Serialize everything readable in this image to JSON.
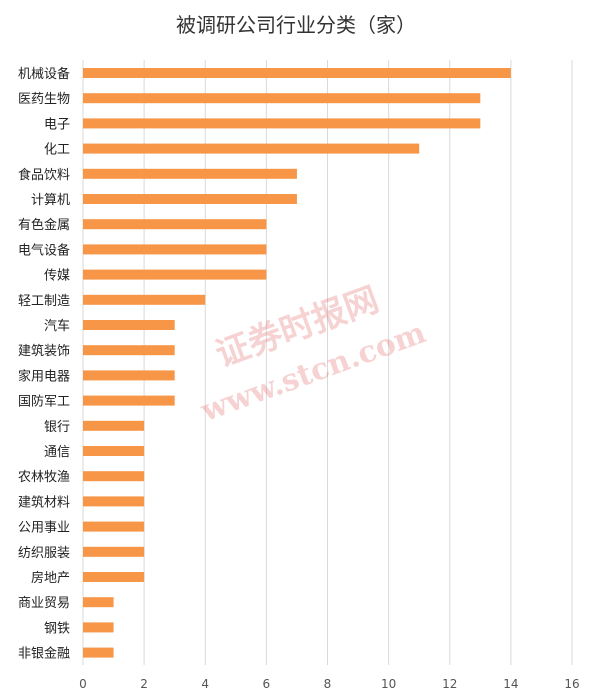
{
  "chart_data": {
    "type": "bar",
    "orientation": "horizontal",
    "title": "被调研公司行业分类（家）",
    "categories": [
      "机械设备",
      "医药生物",
      "电子",
      "化工",
      "食品饮料",
      "计算机",
      "有色金属",
      "电气设备",
      "传媒",
      "轻工制造",
      "汽车",
      "建筑装饰",
      "家用电器",
      "国防军工",
      "银行",
      "通信",
      "农林牧渔",
      "建筑材料",
      "公用事业",
      "纺织服装",
      "房地产",
      "商业贸易",
      "钢铁",
      "非银金融"
    ],
    "values": [
      14,
      13,
      13,
      11,
      7,
      7,
      6,
      6,
      6,
      4,
      3,
      3,
      3,
      3,
      2,
      2,
      2,
      2,
      2,
      2,
      2,
      1,
      1,
      1
    ],
    "xlim": [
      0,
      16
    ],
    "xticks": [
      0,
      2,
      4,
      6,
      8,
      10,
      12,
      14,
      16
    ],
    "grid": true,
    "legend": "none",
    "bar_color": "#F79646",
    "grid_color": "#D9D9D9"
  },
  "watermark": {
    "line1": "证券时报网",
    "line2": "www.stcn.com"
  }
}
